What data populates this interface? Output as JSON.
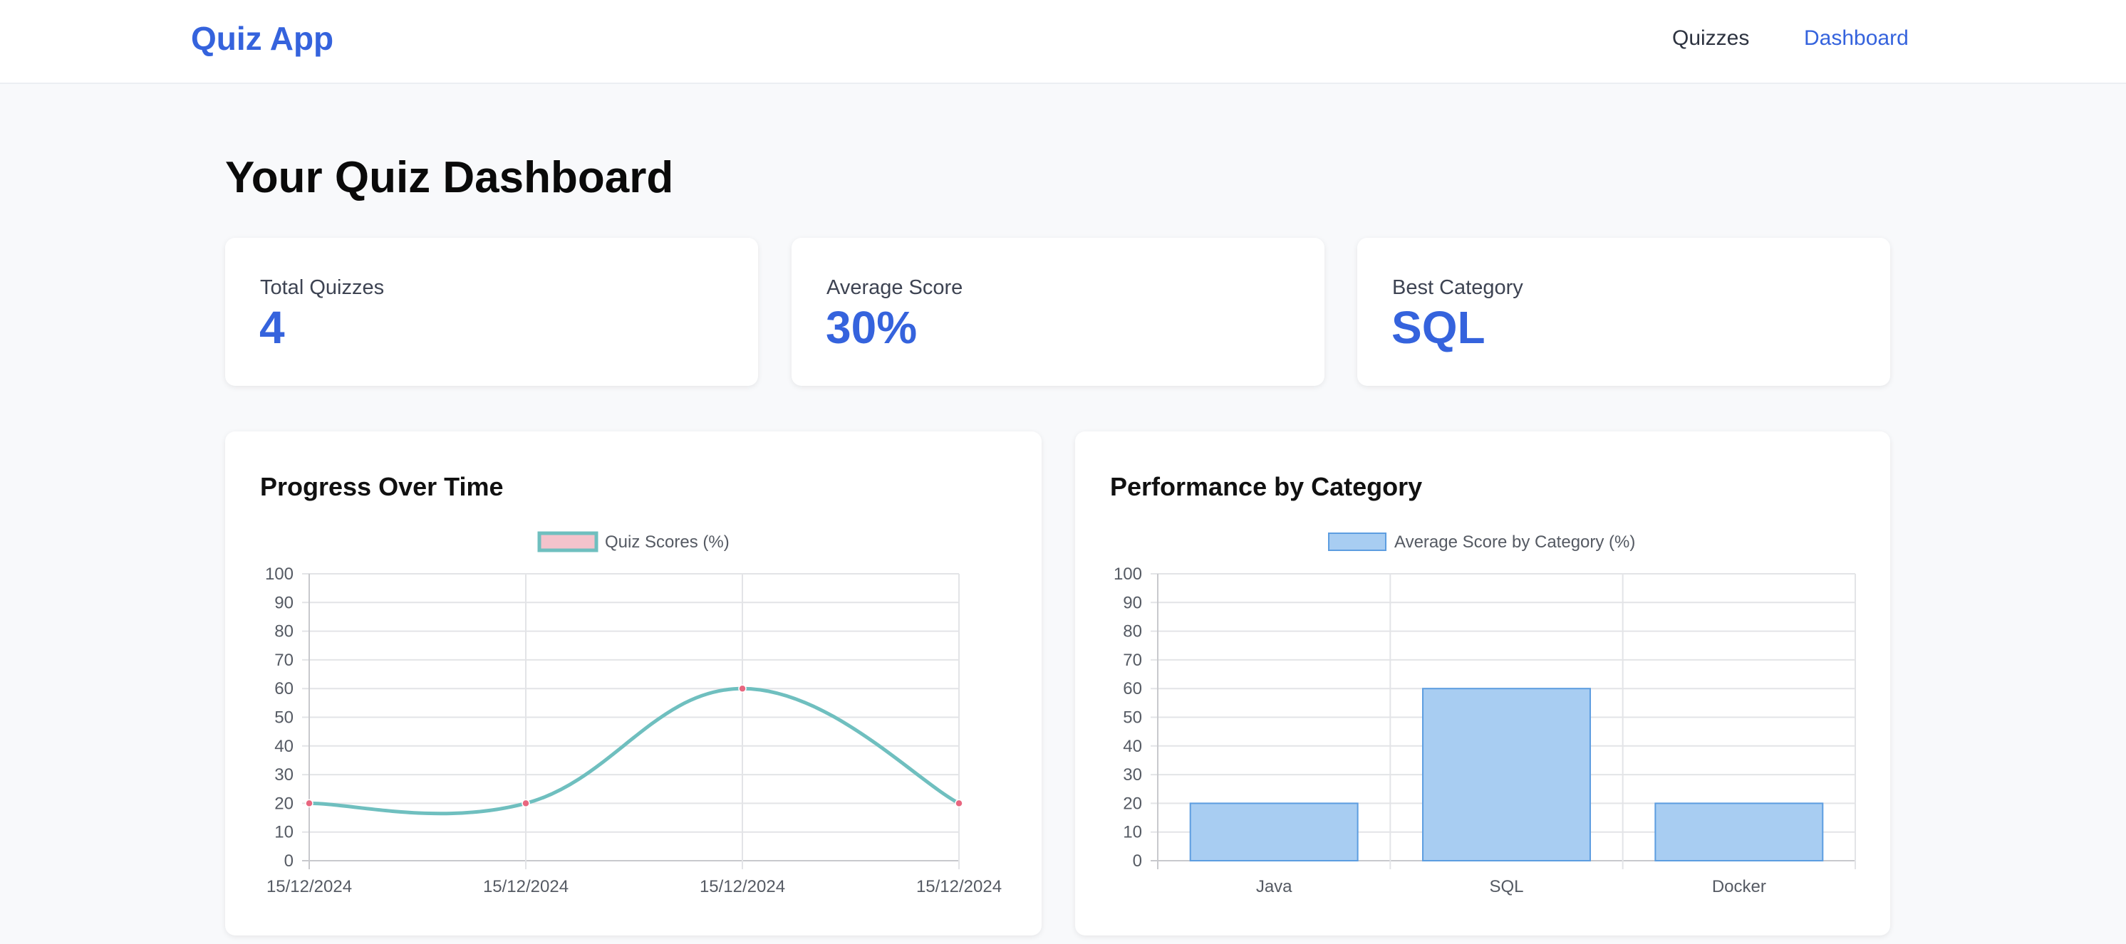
{
  "navbar": {
    "brand": "Quiz App",
    "links": [
      {
        "label": "Quizzes"
      },
      {
        "label": "Dashboard"
      }
    ]
  },
  "page": {
    "title": "Your Quiz Dashboard"
  },
  "stats": [
    {
      "label": "Total Quizzes",
      "value": "4"
    },
    {
      "label": "Average Score",
      "value": "30%"
    },
    {
      "label": "Best Category",
      "value": "SQL"
    }
  ],
  "colors": {
    "accent": "#3563dd",
    "line": "#6fbfbf",
    "point": "#e8667f",
    "legend_fill": "#f4c3cc",
    "bar_fill": "#a8cdf2",
    "bar_border": "#5d9de0"
  },
  "charts": {
    "progress_title": "Progress Over Time",
    "category_title": "Performance by Category"
  },
  "chart_data": [
    {
      "type": "line",
      "title": "Progress Over Time",
      "legend": "Quiz Scores (%)",
      "categories": [
        "15/12/2024",
        "15/12/2024",
        "15/12/2024",
        "15/12/2024"
      ],
      "values": [
        20,
        20,
        60,
        20
      ],
      "ylim": [
        0,
        100
      ],
      "yticks": [
        0,
        10,
        20,
        30,
        40,
        50,
        60,
        70,
        80,
        90,
        100
      ],
      "grid": true
    },
    {
      "type": "bar",
      "title": "Performance by Category",
      "legend": "Average Score by Category (%)",
      "categories": [
        "Java",
        "SQL",
        "Docker"
      ],
      "values": [
        20,
        60,
        20
      ],
      "ylim": [
        0,
        100
      ],
      "yticks": [
        0,
        10,
        20,
        30,
        40,
        50,
        60,
        70,
        80,
        90,
        100
      ],
      "grid": true
    }
  ]
}
